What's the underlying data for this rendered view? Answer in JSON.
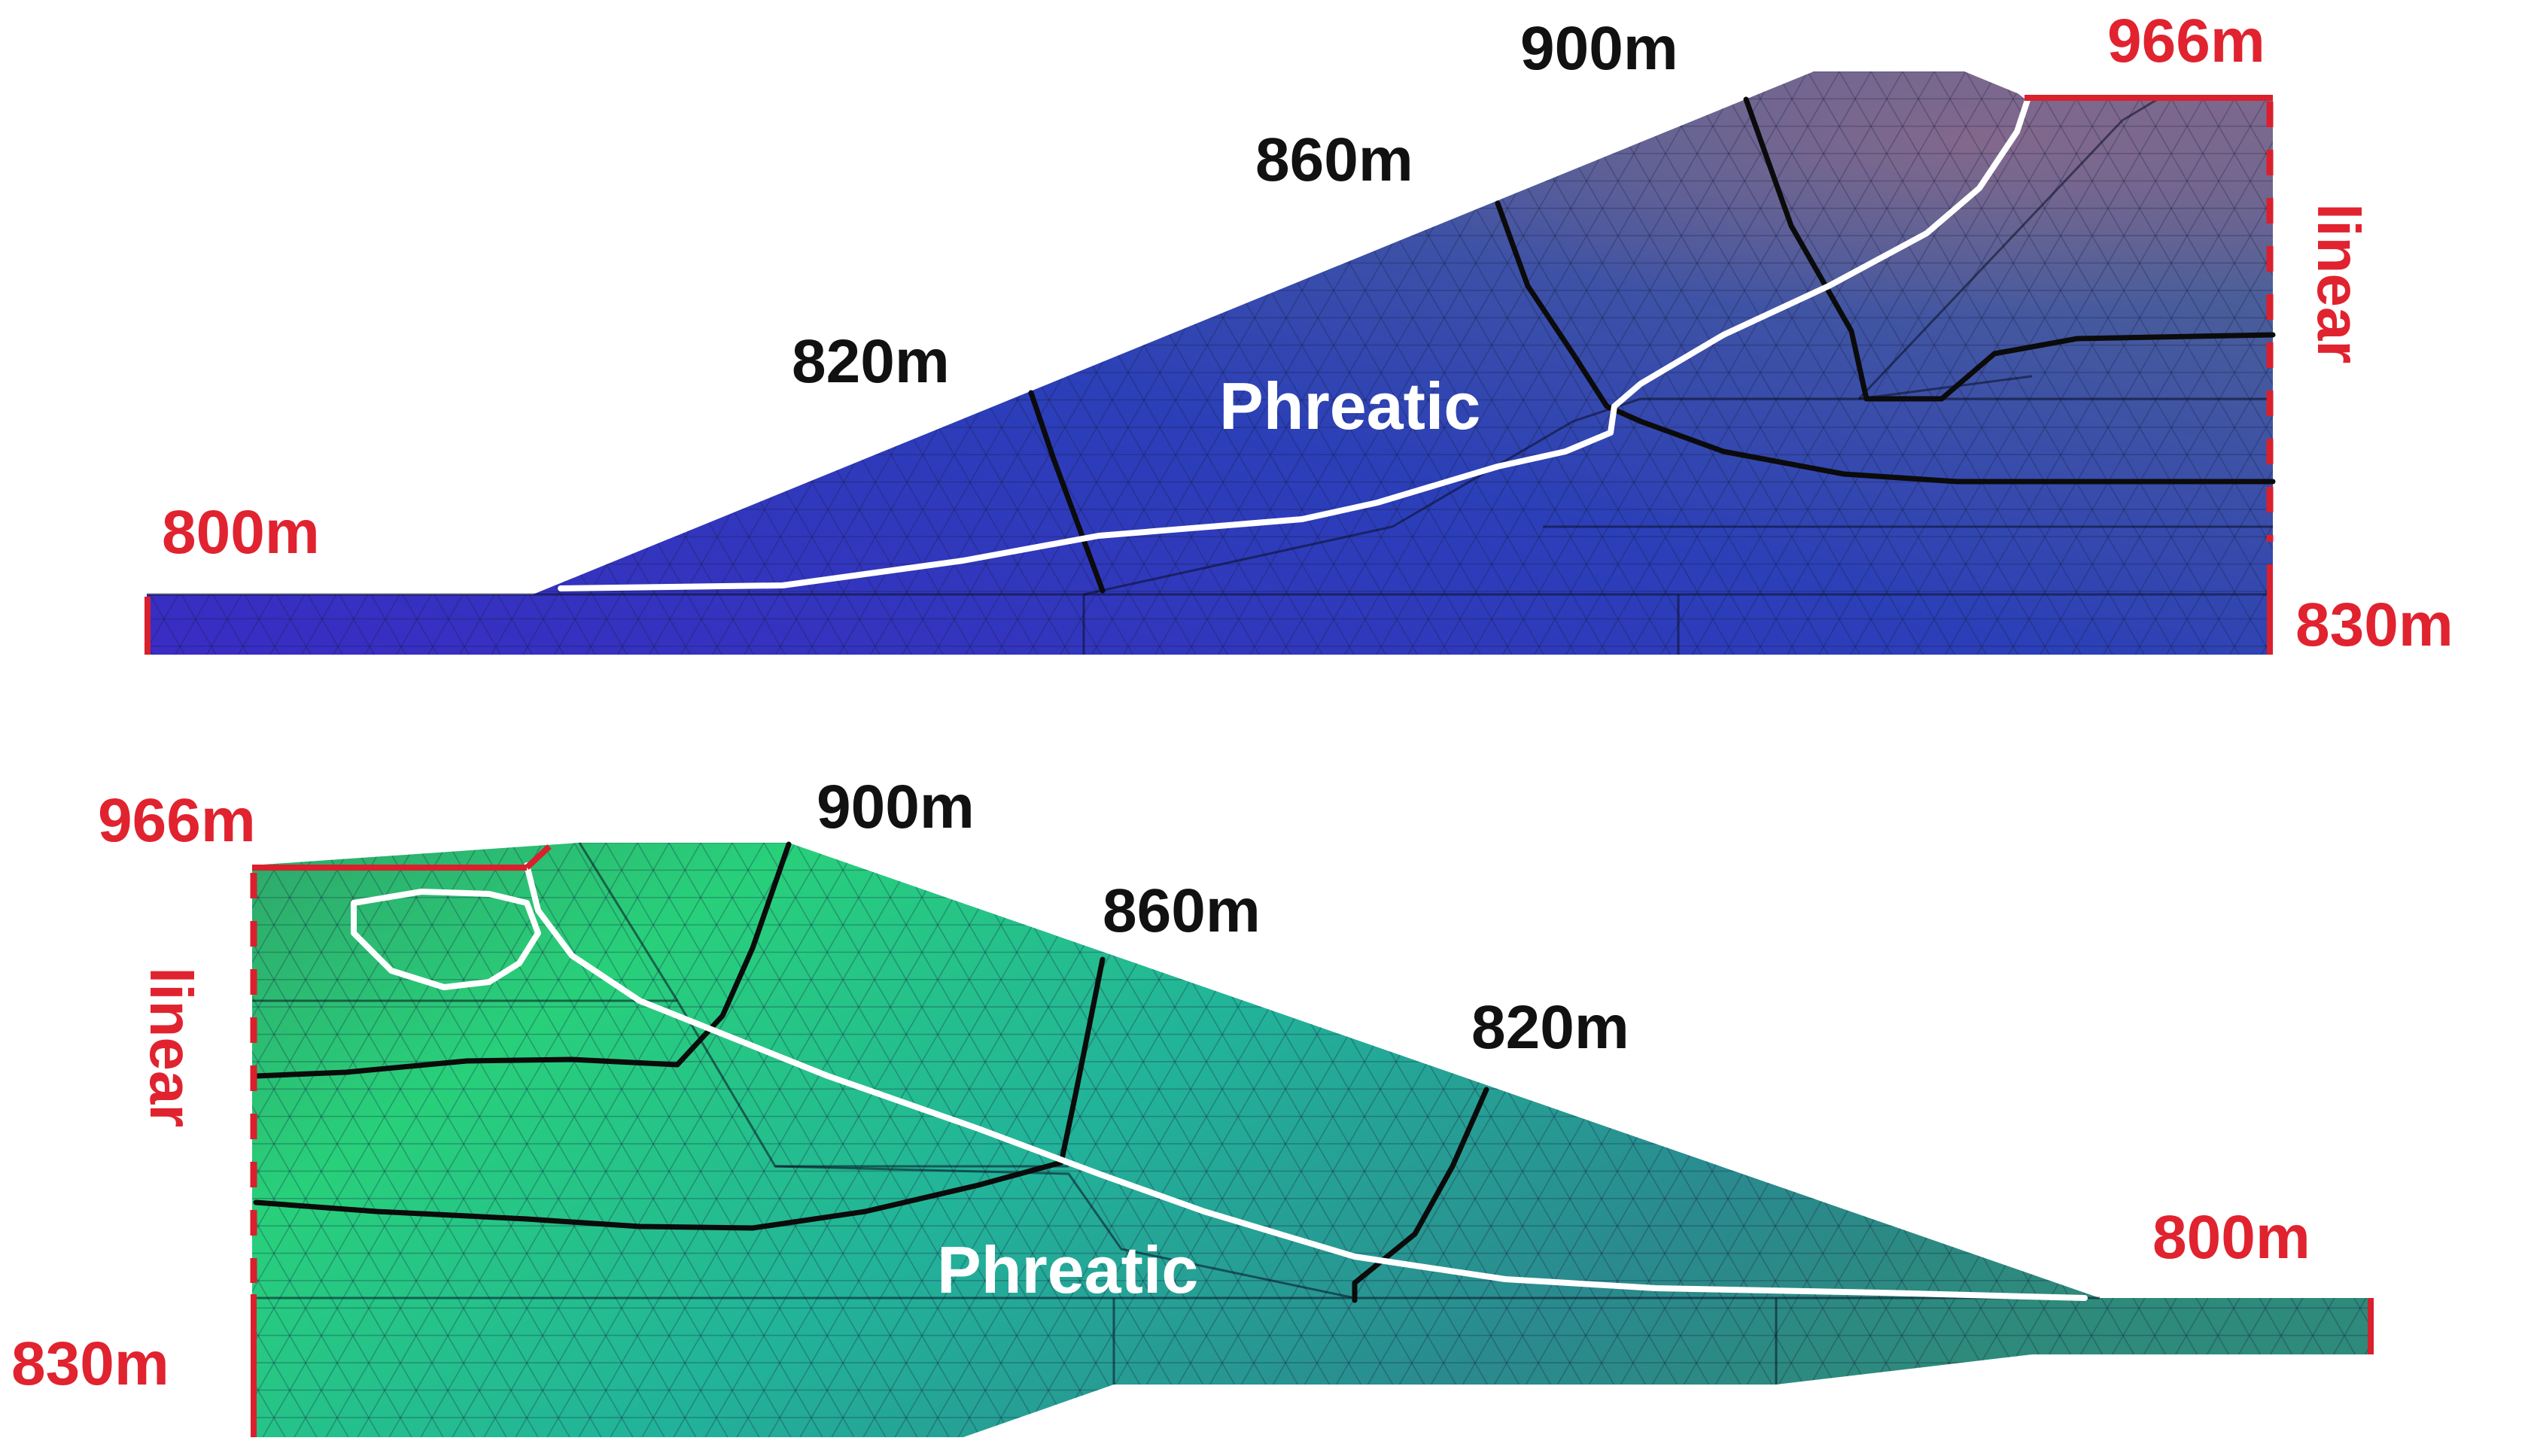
{
  "top_panel": {
    "contour_labels": {
      "c900": "900m",
      "c860": "860m",
      "c820": "820m"
    },
    "boundary_labels": {
      "left_head": "800m",
      "right_top_head": "966m",
      "right_bottom_head": "830m",
      "right_gradient": "linear"
    },
    "phreatic_label": "Phreatic",
    "fill_gradient": [
      "#3a2cc4",
      "#2b3fb8",
      "#4a5e9a",
      "#6a6690"
    ]
  },
  "bottom_panel": {
    "contour_labels": {
      "c900": "900m",
      "c860": "860m",
      "c820": "820m"
    },
    "boundary_labels": {
      "left_top_head": "966m",
      "left_bottom_head": "830m",
      "left_gradient": "linear",
      "right_head": "800m"
    },
    "phreatic_label": "Phreatic",
    "fill_gradient": [
      "#2fa86a",
      "#2ad07a",
      "#28b3a0",
      "#2f7f8a"
    ]
  },
  "colors": {
    "boundary": "#e0232f",
    "contour": "#0b0b0b",
    "phreatic": "#ffffff"
  }
}
